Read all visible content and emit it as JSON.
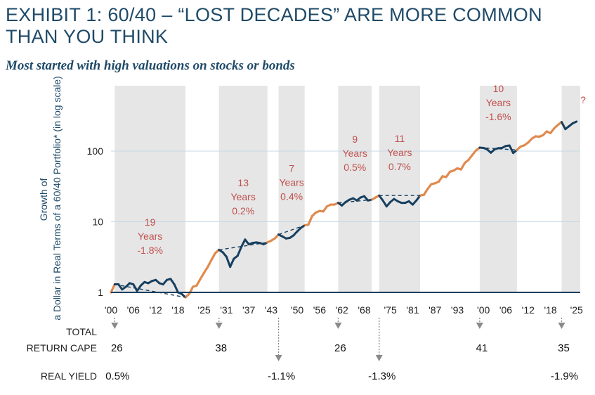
{
  "title": "EXHIBIT 1: 60/40 – “LOST DECADES” ARE MORE COMMON THAN YOU THINK",
  "subtitle": "Most started with high valuations on stocks or bonds",
  "colors": {
    "navy": "#173f5f",
    "orange": "#e08a4e",
    "annotation": "#c0504d",
    "shade": "#e6e6e6",
    "grid": "#c7d9e5",
    "arrow": "#8a8a8a"
  },
  "chart_data": {
    "type": "line",
    "title": "EXHIBIT 1: 60/40 – “LOST DECADES” ARE MORE COMMON THAN YOU THINK",
    "ylabel": "Growth of a Dollar in Real Terms of a 60/40 Portfolio* (in log scale)",
    "yscale": "log",
    "ylim": [
      1,
      450
    ],
    "xlim": [
      1900,
      2026
    ],
    "x_tick_labels": [
      "'00",
      "'06",
      "'12",
      "'18",
      "'25",
      "'31",
      "'37",
      "'43",
      "'50",
      "'56",
      "'62",
      "'68",
      "'75",
      "'81",
      "'87",
      "'93",
      "'00",
      "'06",
      "'12",
      "'18",
      "'25"
    ],
    "x_tick_years": [
      1900,
      1906,
      1912,
      1918,
      1925,
      1931,
      1937,
      1943,
      1950,
      1956,
      1962,
      1968,
      1975,
      1981,
      1987,
      1993,
      2000,
      2006,
      2012,
      2018,
      2025
    ],
    "y_ticks": [
      {
        "value": 1,
        "label": "1"
      },
      {
        "value": 10,
        "label": "10"
      },
      {
        "value": 100,
        "label": "100"
      }
    ],
    "series_points": [
      [
        1900,
        1.0
      ],
      [
        1901,
        1.3
      ],
      [
        1902,
        1.3
      ],
      [
        1903,
        1.1
      ],
      [
        1904,
        1.2
      ],
      [
        1905,
        1.35
      ],
      [
        1906,
        1.3
      ],
      [
        1907,
        1.05
      ],
      [
        1908,
        1.25
      ],
      [
        1909,
        1.4
      ],
      [
        1910,
        1.35
      ],
      [
        1911,
        1.45
      ],
      [
        1912,
        1.5
      ],
      [
        1913,
        1.35
      ],
      [
        1914,
        1.3
      ],
      [
        1915,
        1.5
      ],
      [
        1916,
        1.55
      ],
      [
        1917,
        1.3
      ],
      [
        1918,
        1.0
      ],
      [
        1919,
        0.95
      ],
      [
        1920,
        0.85
      ],
      [
        1921,
        0.95
      ],
      [
        1922,
        1.2
      ],
      [
        1923,
        1.25
      ],
      [
        1924,
        1.55
      ],
      [
        1925,
        1.9
      ],
      [
        1926,
        2.3
      ],
      [
        1927,
        2.9
      ],
      [
        1928,
        3.6
      ],
      [
        1929,
        4.0
      ],
      [
        1930,
        3.7
      ],
      [
        1931,
        3.2
      ],
      [
        1932,
        2.3
      ],
      [
        1933,
        3.0
      ],
      [
        1934,
        3.3
      ],
      [
        1935,
        4.4
      ],
      [
        1936,
        5.6
      ],
      [
        1937,
        4.8
      ],
      [
        1938,
        5.0
      ],
      [
        1939,
        5.1
      ],
      [
        1940,
        5.0
      ],
      [
        1941,
        4.8
      ],
      [
        1942,
        5.1
      ],
      [
        1943,
        5.4
      ],
      [
        1944,
        5.8
      ],
      [
        1945,
        6.6
      ],
      [
        1946,
        6.2
      ],
      [
        1947,
        5.8
      ],
      [
        1948,
        5.9
      ],
      [
        1949,
        6.4
      ],
      [
        1950,
        7.3
      ],
      [
        1951,
        8.2
      ],
      [
        1952,
        8.9
      ],
      [
        1953,
        9.1
      ],
      [
        1954,
        12.0
      ],
      [
        1955,
        13.5
      ],
      [
        1956,
        14.2
      ],
      [
        1957,
        14.0
      ],
      [
        1958,
        16.5
      ],
      [
        1959,
        17.5
      ],
      [
        1960,
        17.5
      ],
      [
        1961,
        18.5
      ],
      [
        1962,
        17.0
      ],
      [
        1963,
        19.0
      ],
      [
        1964,
        20.5
      ],
      [
        1965,
        21.5
      ],
      [
        1966,
        20.0
      ],
      [
        1967,
        22.0
      ],
      [
        1968,
        23.0
      ],
      [
        1969,
        20.0
      ],
      [
        1970,
        20.5
      ],
      [
        1971,
        22.0
      ],
      [
        1972,
        23.5
      ],
      [
        1973,
        20.0
      ],
      [
        1974,
        16.5
      ],
      [
        1975,
        19.0
      ],
      [
        1976,
        21.0
      ],
      [
        1977,
        19.5
      ],
      [
        1978,
        18.5
      ],
      [
        1979,
        18.5
      ],
      [
        1980,
        19.5
      ],
      [
        1981,
        17.5
      ],
      [
        1982,
        20.0
      ],
      [
        1983,
        23.5
      ],
      [
        1984,
        24.0
      ],
      [
        1985,
        29.0
      ],
      [
        1986,
        34.0
      ],
      [
        1987,
        35.0
      ],
      [
        1988,
        37.0
      ],
      [
        1989,
        44.0
      ],
      [
        1990,
        43.0
      ],
      [
        1991,
        51.0
      ],
      [
        1992,
        53.0
      ],
      [
        1993,
        57.0
      ],
      [
        1994,
        55.0
      ],
      [
        1995,
        68.0
      ],
      [
        1996,
        75.0
      ],
      [
        1997,
        88.0
      ],
      [
        1998,
        102.0
      ],
      [
        1999,
        112.0
      ],
      [
        2000,
        111.0
      ],
      [
        2001,
        106.0
      ],
      [
        2002,
        95.0
      ],
      [
        2003,
        106.0
      ],
      [
        2004,
        110.0
      ],
      [
        2005,
        111.0
      ],
      [
        2006,
        118.0
      ],
      [
        2007,
        120.0
      ],
      [
        2008,
        94.0
      ],
      [
        2009,
        104.0
      ],
      [
        2010,
        116.0
      ],
      [
        2011,
        121.0
      ],
      [
        2012,
        132.0
      ],
      [
        2013,
        150.0
      ],
      [
        2014,
        162.0
      ],
      [
        2015,
        160.0
      ],
      [
        2016,
        168.0
      ],
      [
        2017,
        190.0
      ],
      [
        2018,
        180.0
      ],
      [
        2019,
        210.0
      ],
      [
        2020,
        235.0
      ],
      [
        2021,
        258.0
      ],
      [
        2022,
        205.0
      ],
      [
        2023,
        225.0
      ],
      [
        2024,
        248.0
      ],
      [
        2025,
        262.0
      ]
    ],
    "lost_decades": [
      {
        "start": 1901,
        "end": 1920,
        "start_value": 1.3,
        "label_years": "19",
        "label_unit": "Years",
        "label_return": "-1.8%"
      },
      {
        "start": 1929,
        "end": 1942,
        "start_value": 4.0,
        "label_years": "13",
        "label_unit": "Years",
        "label_return": "0.2%"
      },
      {
        "start": 1945,
        "end": 1952,
        "start_value": 6.6,
        "label_years": "7",
        "label_unit": "Years",
        "label_return": "0.4%"
      },
      {
        "start": 1961,
        "end": 1970,
        "start_value": 18.5,
        "label_years": "9",
        "label_unit": "Years",
        "label_return": "0.5%"
      },
      {
        "start": 1972,
        "end": 1983,
        "start_value": 23.5,
        "label_years": "11",
        "label_unit": "Years",
        "label_return": "0.7%"
      },
      {
        "start": 1999,
        "end": 2009,
        "start_value": 112.0,
        "label_years": "10",
        "label_unit": "Years",
        "label_return": "-1.6%"
      }
    ],
    "current_period_start": 2021,
    "current_period_label": "?"
  },
  "valuation_rows": {
    "cape_label_line1": "TOTAL",
    "cape_label_line2": "RETURN CAPE",
    "yield_label": "REAL YIELD",
    "cape_values": [
      {
        "year": 1901,
        "value": "26"
      },
      {
        "year": 1929,
        "value": "38"
      },
      {
        "year": 1961,
        "value": "26"
      },
      {
        "year": 1999,
        "value": "41"
      },
      {
        "year": 2021,
        "value": "35"
      }
    ],
    "yield_values": [
      {
        "year": 1901,
        "value": "0.5%"
      },
      {
        "year": 1945,
        "value": "-1.1%"
      },
      {
        "year": 1972,
        "value": "-1.3%"
      },
      {
        "year": 2021,
        "value": "-1.9%"
      }
    ]
  }
}
